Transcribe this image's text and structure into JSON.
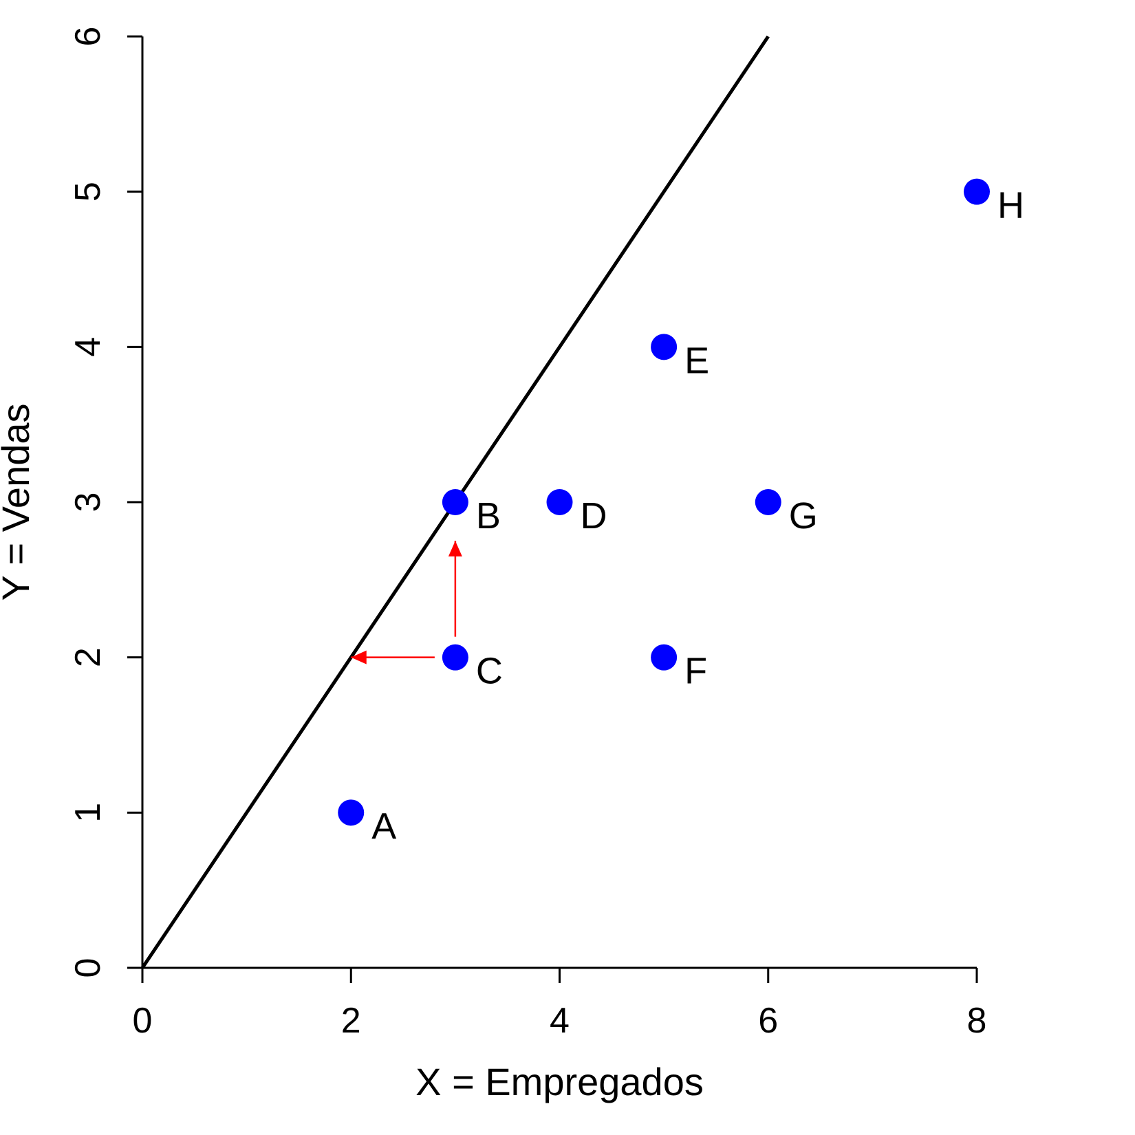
{
  "chart_data": {
    "type": "scatter",
    "xlabel": "X = Empregados",
    "ylabel": "Y = Vendas",
    "xlim": [
      0,
      8
    ],
    "ylim": [
      0,
      6
    ],
    "x_ticks": [
      "0",
      "2",
      "4",
      "6",
      "8"
    ],
    "y_ticks": [
      "0",
      "1",
      "2",
      "3",
      "4",
      "5",
      "6"
    ],
    "grid": false,
    "points": [
      {
        "label": "A",
        "x": 2,
        "y": 1
      },
      {
        "label": "B",
        "x": 3,
        "y": 3
      },
      {
        "label": "C",
        "x": 3,
        "y": 2
      },
      {
        "label": "D",
        "x": 4,
        "y": 3
      },
      {
        "label": "E",
        "x": 5,
        "y": 4
      },
      {
        "label": "F",
        "x": 5,
        "y": 2
      },
      {
        "label": "G",
        "x": 6,
        "y": 3
      },
      {
        "label": "H",
        "x": 8,
        "y": 5
      }
    ],
    "reference_line": {
      "from": [
        0,
        0
      ],
      "to": [
        6,
        6
      ]
    },
    "arrows": [
      {
        "from": [
          3,
          2
        ],
        "to": [
          2,
          2
        ]
      },
      {
        "from": [
          3,
          2
        ],
        "to": [
          3,
          2.75
        ]
      }
    ],
    "colors": {
      "points": "#0000ff",
      "line": "#000000",
      "arrows": "#ff0000"
    }
  }
}
